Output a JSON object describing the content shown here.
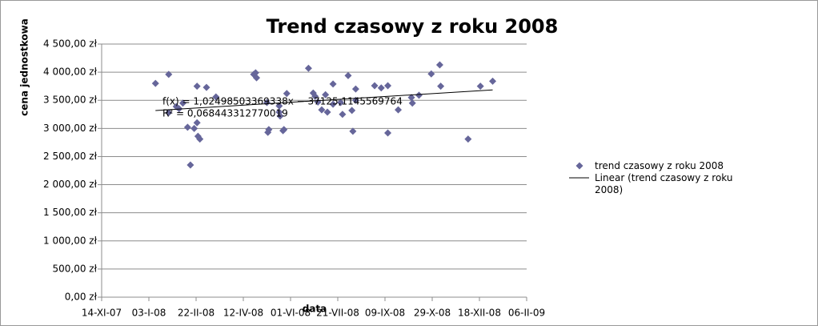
{
  "chart_data": {
    "type": "scatter",
    "title": "Trend czasowy z roku 2008",
    "xlabel": "data",
    "ylabel": "cena jednostkowa",
    "xlim": [
      39400,
      39850
    ],
    "xticks": [
      {
        "value": 39400,
        "label": "14-XI-07"
      },
      {
        "value": 39450,
        "label": "03-I-08"
      },
      {
        "value": 39500,
        "label": "22-II-08"
      },
      {
        "value": 39550,
        "label": "12-IV-08"
      },
      {
        "value": 39600,
        "label": "01-VI-08"
      },
      {
        "value": 39650,
        "label": "21-VII-08"
      },
      {
        "value": 39700,
        "label": "09-IX-08"
      },
      {
        "value": 39750,
        "label": "29-X-08"
      },
      {
        "value": 39800,
        "label": "18-XII-08"
      },
      {
        "value": 39850,
        "label": "06-II-09"
      }
    ],
    "ylim": [
      0,
      4500
    ],
    "yticks": [
      {
        "value": 0,
        "label": "0,00 zł"
      },
      {
        "value": 500,
        "label": "500,00 zł"
      },
      {
        "value": 1000,
        "label": "1 000,00 zł"
      },
      {
        "value": 1500,
        "label": "1 500,00 zł"
      },
      {
        "value": 2000,
        "label": "2 000,00 zł"
      },
      {
        "value": 2500,
        "label": "2 500,00 zł"
      },
      {
        "value": 3000,
        "label": "3 000,00 zł"
      },
      {
        "value": 3500,
        "label": "3 500,00 zł"
      },
      {
        "value": 4000,
        "label": "4 000,00 zł"
      },
      {
        "value": 4500,
        "label": "4 500,00 zł"
      }
    ],
    "grid": true,
    "series": [
      {
        "name": "trend czasowy z roku 2008",
        "color": "#66669a",
        "x": [
          39457,
          39471,
          39471,
          39479,
          39482,
          39486,
          39491,
          39494,
          39498,
          39501,
          39501,
          39502,
          39504,
          39511,
          39521,
          39561,
          39563,
          39564,
          39575,
          39576,
          39577,
          39588,
          39588,
          39589,
          39592,
          39593,
          39596,
          39619,
          39624,
          39626,
          39629,
          39633,
          39637,
          39639,
          39645,
          39645,
          39653,
          39655,
          39661,
          39665,
          39666,
          39669,
          39669,
          39689,
          39696,
          39703,
          39703,
          39714,
          39728,
          39729,
          39736,
          39749,
          39758,
          39759,
          39788,
          39801,
          39814
        ],
        "values": [
          3800,
          3960,
          3280,
          3390,
          3350,
          3450,
          3020,
          2350,
          3000,
          3100,
          3750,
          2860,
          2810,
          3730,
          3560,
          3960,
          3990,
          3900,
          3460,
          2930,
          2980,
          3400,
          3290,
          3220,
          2960,
          2980,
          3620,
          4070,
          3630,
          3570,
          3470,
          3330,
          3600,
          3290,
          3790,
          3430,
          3460,
          3250,
          3940,
          3320,
          2950,
          3700,
          3500,
          3760,
          3720,
          3760,
          2920,
          3330,
          3550,
          3450,
          3590,
          3970,
          4130,
          3750,
          2810,
          3750,
          3840
        ]
      }
    ],
    "trendline": {
      "name": "Linear (trend czasowy z roku 2008)",
      "color": "#000000",
      "x": [
        39457,
        39814
      ],
      "values": [
        3318,
        3684
      ],
      "equation": "f(x) = 1,02498503369338x − 37125,1145569764",
      "r2": "R² = 0,068443312770019"
    }
  }
}
